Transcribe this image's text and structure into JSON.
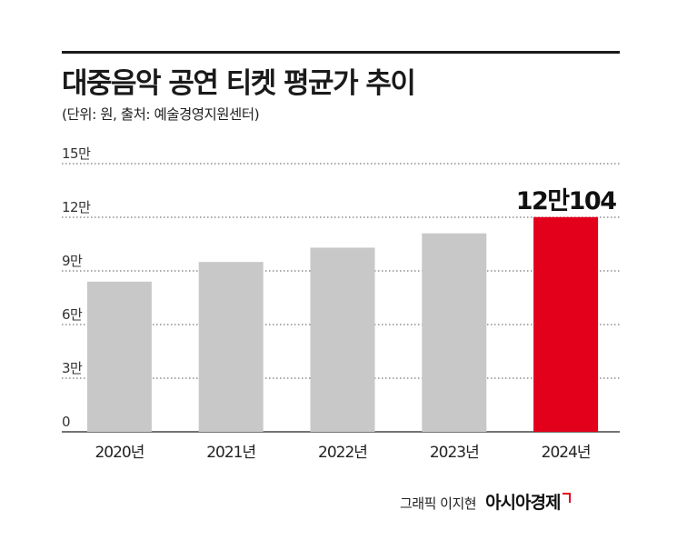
{
  "title": "대중음악 공연 티켓 평균가 추이",
  "subtitle": "(단위: 원, 출처: 예술경영지원센터)",
  "credit": {
    "name": "그래픽 이지현",
    "brand": "아시아경제"
  },
  "colors": {
    "bar": "#c8c8c8",
    "highlight": "#e3001b",
    "gridline": "#555555"
  },
  "chart_data": {
    "type": "bar",
    "categories": [
      "2020년",
      "2021년",
      "2022년",
      "2023년",
      "2024년"
    ],
    "values": [
      84000,
      95000,
      103000,
      111000,
      120104
    ],
    "ylim": [
      0,
      150000
    ],
    "yticks": [
      0,
      30000,
      60000,
      90000,
      120000,
      150000
    ],
    "ytick_labels": [
      "0",
      "3만",
      "6만",
      "9만",
      "12만",
      "15만"
    ],
    "highlight_index": 4,
    "annotation": "12만104",
    "grid": true
  }
}
